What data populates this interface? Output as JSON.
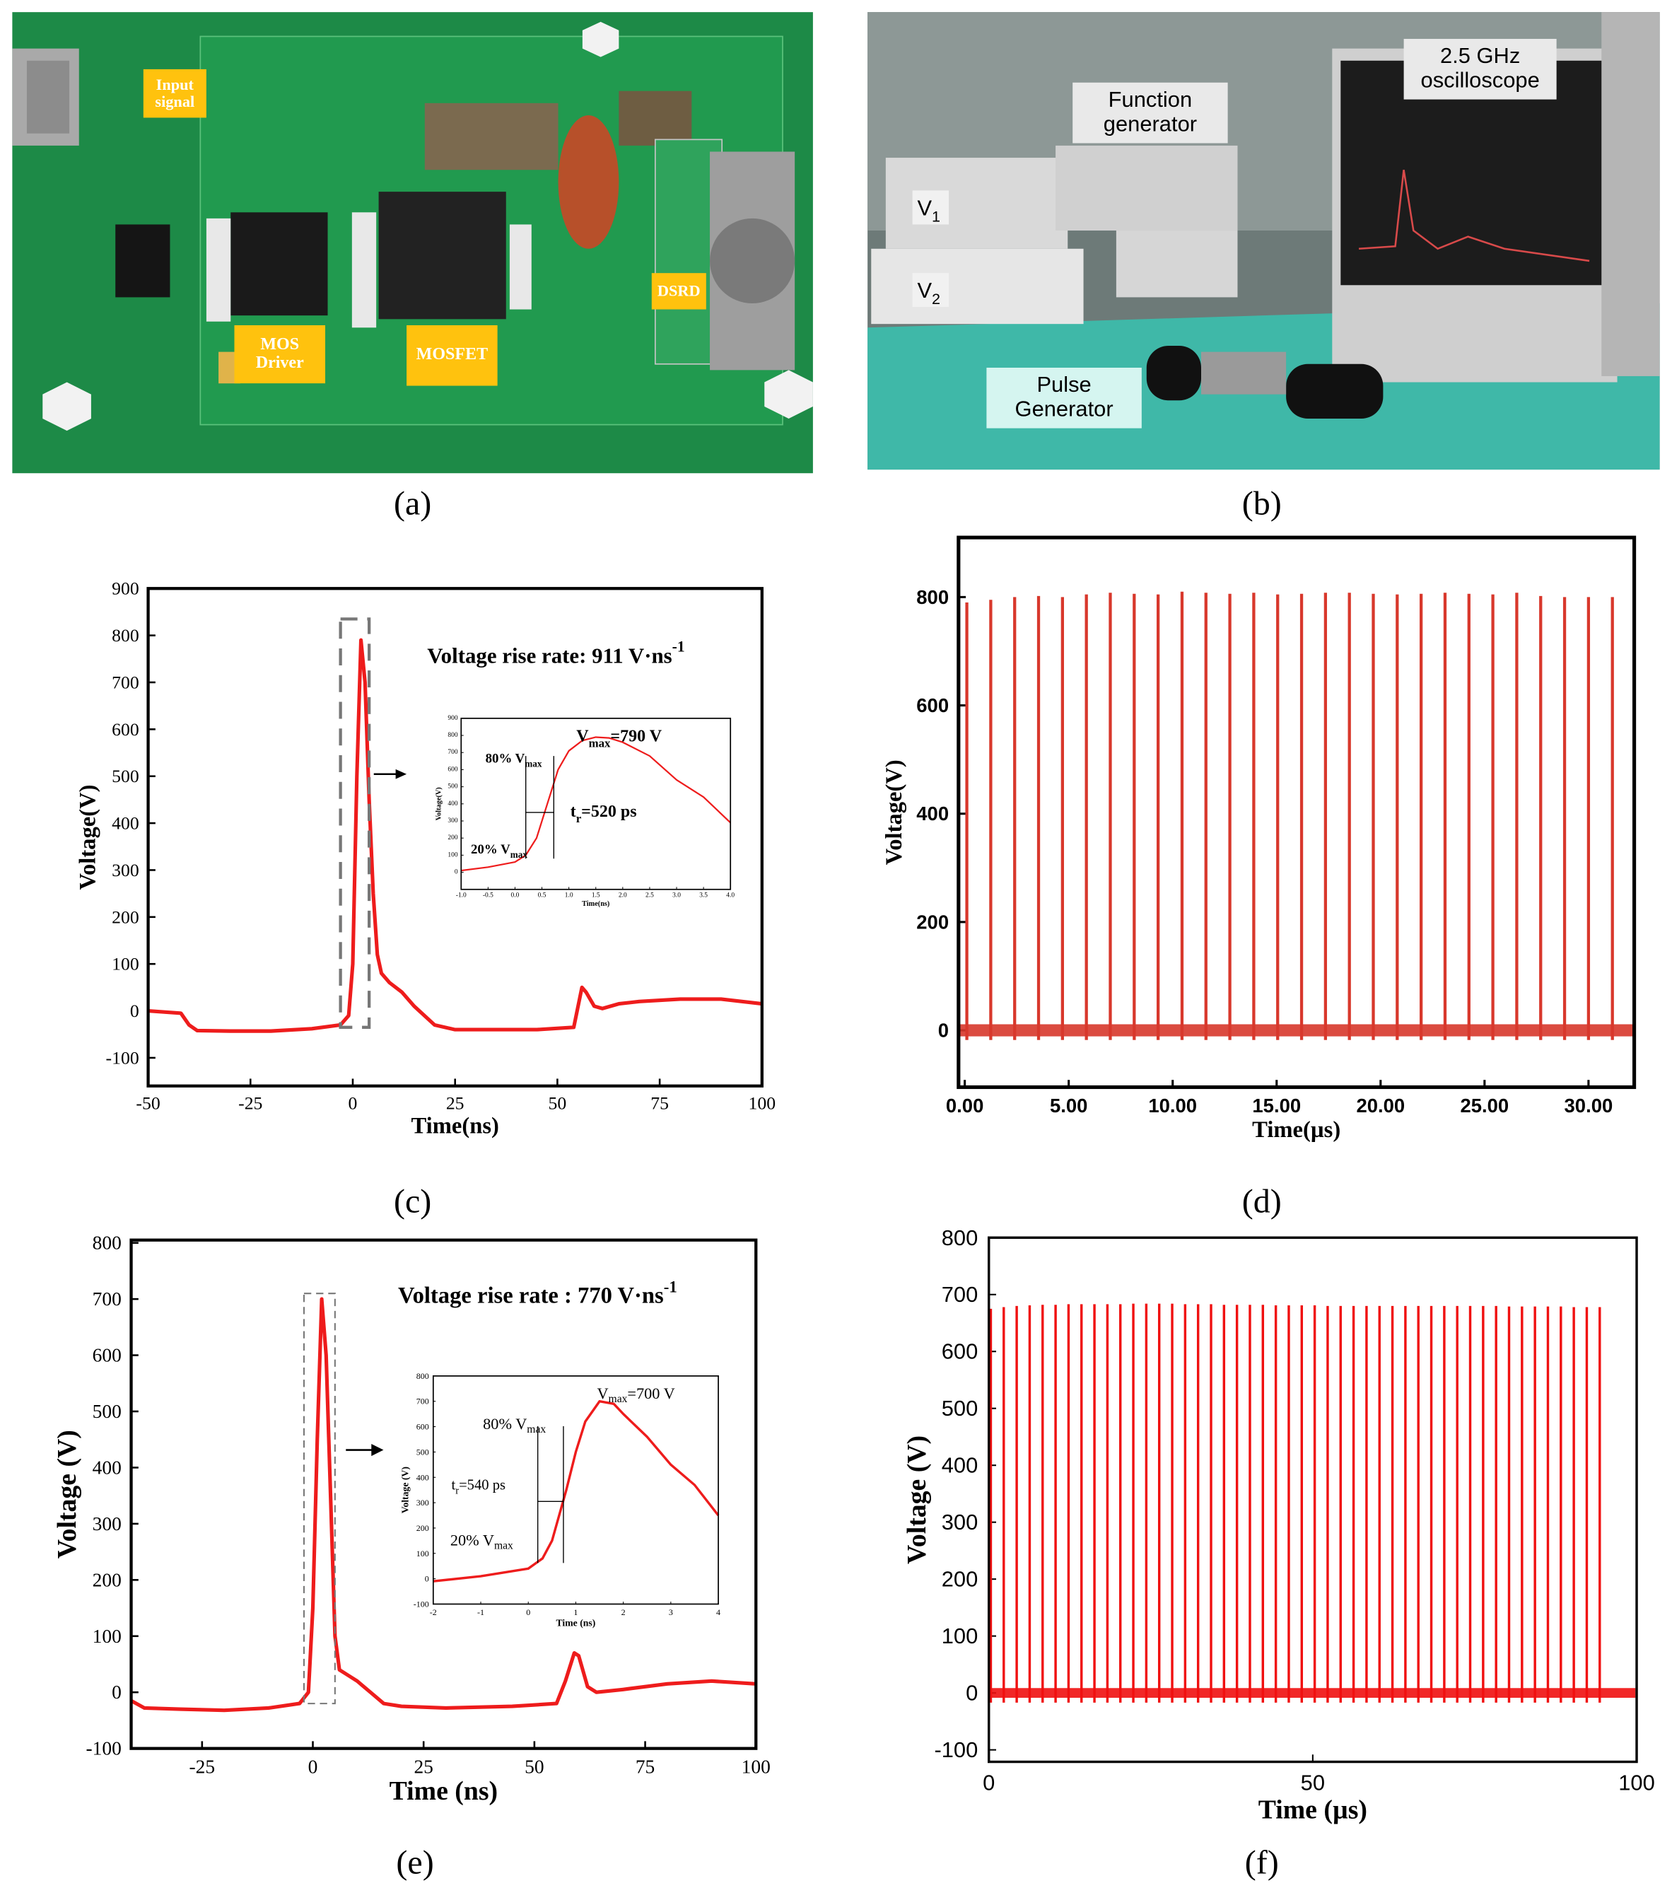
{
  "panel_labels": [
    "(a)",
    "(b)",
    "(c)",
    "(d)",
    "(e)",
    "(f)"
  ],
  "photo_a": {
    "labels": [
      "Input signal",
      "MOS Driver",
      "MOSFET",
      "DSRD"
    ]
  },
  "photo_b": {
    "labels": [
      "Function generator",
      "2.5 GHz oscilloscope",
      "Pulse Generator"
    ],
    "v1": {
      "text": "V",
      "sub": "1"
    },
    "v2": {
      "text": "V",
      "sub": "2"
    }
  },
  "chart_data": [
    {
      "type": "line",
      "xlabel": "Time(ns)",
      "ylabel": "Voltage(V)",
      "color": "#ee1c1c",
      "xlim": [
        -50,
        100
      ],
      "ylim": [
        -160,
        900
      ],
      "xticks": [
        -50,
        -25,
        0,
        25,
        50,
        75,
        100
      ],
      "yticks": [
        -100,
        0,
        100,
        200,
        300,
        400,
        500,
        600,
        700,
        800,
        900
      ],
      "x": [
        -50,
        -42,
        -40,
        -38,
        -30,
        -20,
        -10,
        -3,
        -1,
        0,
        1,
        2,
        3,
        4,
        5,
        6,
        7,
        9,
        12,
        15,
        20,
        25,
        35,
        45,
        54,
        56,
        57,
        59,
        61,
        65,
        70,
        80,
        90,
        100
      ],
      "values": [
        0,
        -5,
        -30,
        -42,
        -43,
        -43,
        -38,
        -30,
        -10,
        100,
        500,
        790,
        700,
        450,
        250,
        120,
        80,
        60,
        40,
        10,
        -30,
        -40,
        -40,
        -40,
        -35,
        50,
        40,
        10,
        5,
        15,
        20,
        25,
        25,
        15
      ],
      "annotation": {
        "text": "Voltage rise rate: 911 V·ns",
        "sup": "-1"
      },
      "zoom_box": {
        "x": [
          -3,
          4
        ],
        "y": [
          -35,
          835
        ]
      }
    },
    {
      "type": "line",
      "xlabel": "Time(ns)",
      "ylabel": "Voltage(V)",
      "color": "#ee1c1c",
      "xlim": [
        -1,
        4
      ],
      "ylim": [
        -100,
        900
      ],
      "xticks": [
        {
          "value": -1,
          "label": "-1.0"
        },
        {
          "value": -0.5,
          "label": "-0.5"
        },
        {
          "value": 0,
          "label": "0.0"
        },
        {
          "value": 0.5,
          "label": "0.5"
        },
        {
          "value": 1,
          "label": "1.0"
        },
        {
          "value": 1.5,
          "label": "1.5"
        },
        {
          "value": 2,
          "label": "2.0"
        },
        {
          "value": 2.5,
          "label": "2.5"
        },
        {
          "value": 3,
          "label": "3.0"
        },
        {
          "value": 3.5,
          "label": "3.5"
        },
        {
          "value": 4,
          "label": "4.0"
        }
      ],
      "yticks": [
        0,
        100,
        200,
        300,
        400,
        500,
        600,
        700,
        800,
        900
      ],
      "x": [
        -1,
        -0.5,
        0,
        0.2,
        0.4,
        0.6,
        0.8,
        1,
        1.25,
        1.5,
        1.75,
        2,
        2.5,
        3,
        3.5,
        4
      ],
      "values": [
        10,
        30,
        60,
        100,
        200,
        400,
        600,
        710,
        770,
        790,
        785,
        760,
        680,
        540,
        440,
        290
      ],
      "rise_markers": [
        0.2,
        0.72
      ],
      "notes": [
        {
          "text": "V",
          "sub": "max",
          "after": "=790 V"
        },
        {
          "text": "80% V",
          "sub": "max"
        },
        {
          "text": "t",
          "sub": "r",
          "after": "=520 ps"
        },
        {
          "text": "20% V",
          "sub": "max"
        }
      ]
    },
    {
      "type": "stem",
      "xlabel": "Time(µs)",
      "ylabel": "Voltage(V)",
      "color": "#d8382c",
      "xlim": [
        -0.3,
        32.2
      ],
      "ylim": [
        -105,
        910
      ],
      "xticks": [
        {
          "value": 0,
          "label": "0.00"
        },
        {
          "value": 5,
          "label": "5.00"
        },
        {
          "value": 10,
          "label": "10.00"
        },
        {
          "value": 15,
          "label": "15.00"
        },
        {
          "value": 20,
          "label": "20.00"
        },
        {
          "value": 25,
          "label": "25.00"
        },
        {
          "value": 30,
          "label": "30.00"
        }
      ],
      "yticks": [
        0,
        200,
        400,
        600,
        800
      ],
      "x": [
        0.1,
        1.25,
        2.4,
        3.55,
        4.7,
        5.85,
        7.0,
        8.15,
        9.3,
        10.45,
        11.6,
        12.75,
        13.9,
        15.05,
        16.2,
        17.35,
        18.5,
        19.65,
        20.8,
        21.95,
        23.1,
        24.25,
        25.4,
        26.55,
        27.7,
        28.85,
        30.0,
        31.15
      ],
      "values": [
        790,
        795,
        800,
        802,
        800,
        805,
        808,
        806,
        805,
        810,
        808,
        806,
        808,
        805,
        806,
        808,
        808,
        806,
        805,
        806,
        808,
        806,
        805,
        808,
        802,
        800,
        800,
        800
      ]
    },
    {
      "type": "line",
      "xlabel": "Time (ns)",
      "ylabel": "Voltage (V)",
      "color": "#ee1c1c",
      "xlim": [
        -41,
        100
      ],
      "ylim": [
        -100,
        805
      ],
      "xticks": [
        -25,
        0,
        25,
        50,
        75,
        100
      ],
      "yticks": [
        -100,
        0,
        100,
        200,
        300,
        400,
        500,
        600,
        700,
        800
      ],
      "x": [
        -41,
        -38,
        -30,
        -20,
        -10,
        -3,
        -1,
        0,
        1,
        2,
        3,
        4,
        5,
        6,
        8,
        10,
        13,
        16,
        20,
        30,
        45,
        55,
        57,
        59,
        60,
        62,
        64,
        70,
        80,
        90,
        100
      ],
      "values": [
        -15,
        -28,
        -30,
        -32,
        -28,
        -20,
        0,
        150,
        450,
        700,
        600,
        350,
        100,
        40,
        30,
        20,
        0,
        -20,
        -25,
        -28,
        -25,
        -20,
        20,
        70,
        65,
        10,
        0,
        5,
        15,
        20,
        15
      ],
      "annotation": {
        "text": "Voltage rise rate : 770 V·ns",
        "sup": "-1"
      },
      "zoom_box": {
        "x": [
          -2,
          5
        ],
        "y": [
          -20,
          710
        ]
      }
    },
    {
      "type": "line",
      "xlabel": "Time (ns)",
      "ylabel": "Voltage (V)",
      "color": "#ee1c1c",
      "xlim": [
        -2,
        4
      ],
      "ylim": [
        -100,
        800
      ],
      "xticks": [
        -2,
        -1,
        0,
        1,
        2,
        3,
        4
      ],
      "yticks": [
        -100,
        0,
        100,
        200,
        300,
        400,
        500,
        600,
        700,
        800
      ],
      "x": [
        -2,
        -1,
        0,
        0.3,
        0.5,
        0.8,
        1,
        1.2,
        1.5,
        1.8,
        2,
        2.5,
        3,
        3.5,
        4
      ],
      "values": [
        -10,
        10,
        40,
        80,
        150,
        350,
        500,
        620,
        700,
        690,
        650,
        560,
        450,
        370,
        250
      ],
      "rise_markers": [
        0.2,
        0.74
      ],
      "notes": [
        {
          "text": "V",
          "sub": "max",
          "after": "=700 V"
        },
        {
          "text": "80% V",
          "sub": "max"
        },
        {
          "text": "t",
          "sub": "r",
          "after": "=540 ps"
        },
        {
          "text": "20% V",
          "sub": "max"
        }
      ]
    },
    {
      "type": "stem",
      "xlabel": "Time (µs)",
      "ylabel": "Voltage (V)",
      "color": "#f01010",
      "xlim": [
        0,
        100
      ],
      "ylim": [
        -121,
        800
      ],
      "xticks": [
        0,
        50,
        100
      ],
      "yticks": [
        -100,
        0,
        100,
        200,
        300,
        400,
        500,
        600,
        700,
        800
      ],
      "x": [
        0.3,
        2.3,
        4.3,
        6.3,
        8.3,
        10.3,
        12.3,
        14.3,
        16.3,
        18.3,
        20.3,
        22.3,
        24.3,
        26.3,
        28.3,
        30.3,
        32.3,
        34.3,
        36.3,
        38.3,
        40.3,
        42.3,
        44.3,
        46.3,
        48.3,
        50.3,
        52.3,
        54.3,
        56.3,
        58.3,
        60.3,
        62.3,
        64.3,
        66.3,
        68.3,
        70.3,
        72.3,
        74.3,
        76.3,
        78.3,
        80.3,
        82.3,
        84.3,
        86.3,
        88.3,
        90.3,
        92.3,
        94.3
      ],
      "values": [
        675,
        678,
        680,
        681,
        682,
        682,
        683,
        683,
        683,
        683,
        683,
        684,
        684,
        684,
        684,
        683,
        683,
        683,
        682,
        682,
        682,
        682,
        681,
        681,
        681,
        681,
        680,
        680,
        680,
        680,
        680,
        680,
        680,
        680,
        680,
        680,
        680,
        680,
        680,
        680,
        679,
        679,
        679,
        679,
        679,
        678,
        678,
        678
      ]
    }
  ]
}
